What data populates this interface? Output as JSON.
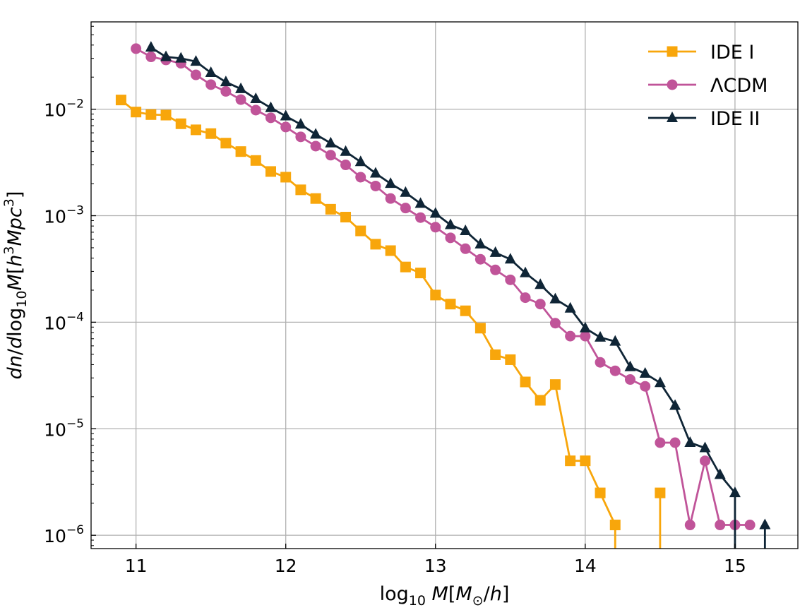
{
  "chart_data": {
    "type": "line",
    "title": "",
    "xlabel": "log10 M[M⊙/h]",
    "ylabel": "dn/dlog10 M[h³Mpc³]",
    "x_scale": "linear",
    "y_scale": "log",
    "xlim": [
      10.7,
      15.42
    ],
    "ylim": [
      7.5e-07,
      0.066
    ],
    "xticks": [
      11,
      12,
      13,
      14,
      15
    ],
    "yticks": [
      1e-06,
      1e-05,
      0.0001,
      0.001,
      0.01
    ],
    "ytick_labels": [
      {
        "base": "10",
        "exp": "−6"
      },
      {
        "base": "10",
        "exp": "−5"
      },
      {
        "base": "10",
        "exp": "−4"
      },
      {
        "base": "10",
        "exp": "−3"
      },
      {
        "base": "10",
        "exp": "−2"
      }
    ],
    "grid": true,
    "legend_position": "top-right",
    "series": [
      {
        "name": "IDE I",
        "color": "#f8a60b",
        "marker": "square",
        "x": [
          10.9,
          11.0,
          11.1,
          11.2,
          11.3,
          11.4,
          11.5,
          11.6,
          11.7,
          11.8,
          11.9,
          12.0,
          12.1,
          12.2,
          12.3,
          12.4,
          12.5,
          12.6,
          12.7,
          12.8,
          12.9,
          13.0,
          13.1,
          13.2,
          13.3,
          13.4,
          13.5,
          13.6,
          13.7,
          13.8,
          13.9,
          14.0,
          14.1,
          14.2,
          14.5
        ],
        "y": [
          0.0122,
          0.0094,
          0.0089,
          0.0088,
          0.0073,
          0.0064,
          0.0059,
          0.0048,
          0.004,
          0.0033,
          0.0026,
          0.0023,
          0.00175,
          0.00145,
          0.00115,
          0.00097,
          0.00072,
          0.00054,
          0.00047,
          0.00033,
          0.00029,
          0.00018,
          0.000148,
          0.000128,
          8.8e-05,
          4.95e-05,
          4.45e-05,
          2.75e-05,
          1.85e-05,
          2.6e-05,
          5e-06,
          5e-06,
          2.5e-06,
          1.25e-06,
          2.5e-06
        ],
        "drop_to_bottom_after": [
          14.2,
          14.5
        ]
      },
      {
        "name": "ΛCDM",
        "color": "#c05499",
        "marker": "circle",
        "x": [
          11.0,
          11.1,
          11.2,
          11.3,
          11.4,
          11.5,
          11.6,
          11.7,
          11.8,
          11.9,
          12.0,
          12.1,
          12.2,
          12.3,
          12.4,
          12.5,
          12.6,
          12.7,
          12.8,
          12.9,
          13.0,
          13.1,
          13.2,
          13.3,
          13.4,
          13.5,
          13.6,
          13.7,
          13.8,
          13.9,
          14.0,
          14.1,
          14.2,
          14.3,
          14.4,
          14.5,
          14.6,
          14.7,
          14.8,
          14.9,
          15.0,
          15.1
        ],
        "y": [
          0.037,
          0.031,
          0.029,
          0.027,
          0.021,
          0.017,
          0.0147,
          0.0123,
          0.0098,
          0.0083,
          0.0068,
          0.0055,
          0.0045,
          0.0037,
          0.003,
          0.0023,
          0.0019,
          0.00145,
          0.00118,
          0.00096,
          0.00078,
          0.00062,
          0.00049,
          0.00039,
          0.00031,
          0.00025,
          0.00017,
          0.000148,
          9.8e-05,
          7.4e-05,
          7.4e-05,
          4.2e-05,
          3.5e-05,
          2.9e-05,
          2.5e-05,
          7.4e-06,
          7.4e-06,
          1.25e-06,
          5e-06,
          1.25e-06,
          1.25e-06,
          1.25e-06
        ]
      },
      {
        "name": "IDE II",
        "color": "#0f2536",
        "marker": "triangle",
        "x": [
          11.1,
          11.2,
          11.3,
          11.4,
          11.5,
          11.6,
          11.7,
          11.8,
          11.9,
          12.0,
          12.1,
          12.2,
          12.3,
          12.4,
          12.5,
          12.6,
          12.7,
          12.8,
          12.9,
          13.0,
          13.1,
          13.2,
          13.3,
          13.4,
          13.5,
          13.6,
          13.7,
          13.8,
          13.9,
          14.0,
          14.1,
          14.2,
          14.3,
          14.4,
          14.5,
          14.6,
          14.7,
          14.8,
          14.9,
          15.0,
          15.2
        ],
        "y": [
          0.038,
          0.031,
          0.03,
          0.028,
          0.022,
          0.018,
          0.0155,
          0.0125,
          0.0103,
          0.0086,
          0.0072,
          0.0058,
          0.0048,
          0.004,
          0.0032,
          0.0025,
          0.002,
          0.00165,
          0.0013,
          0.00105,
          0.00082,
          0.00072,
          0.00054,
          0.00045,
          0.00039,
          0.00029,
          0.000225,
          0.000165,
          0.000135,
          8.8e-05,
          7.2e-05,
          6.6e-05,
          3.8e-05,
          3.3e-05,
          2.7e-05,
          1.65e-05,
          7.4e-06,
          6.6e-06,
          3.7e-06,
          2.5e-06,
          1.25e-06
        ],
        "drop_to_bottom_after": [
          15.0,
          15.2
        ]
      }
    ]
  }
}
